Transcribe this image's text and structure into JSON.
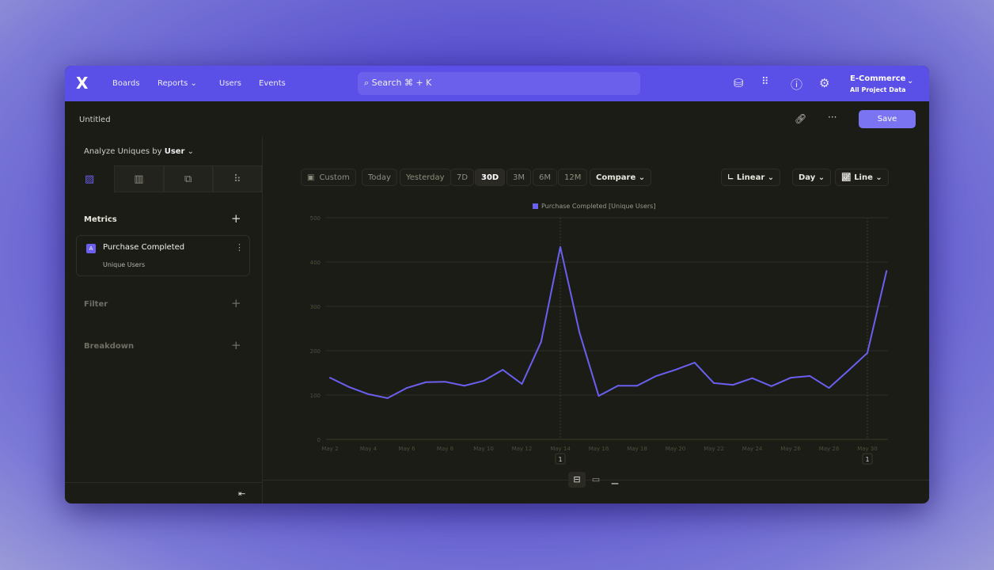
{
  "nav": {
    "logo": "X",
    "items": [
      "Boards",
      "Reports",
      "Users",
      "Events"
    ],
    "search_placeholder": "Search ⌘ + K",
    "project": "E-Commerce",
    "project_sub": "All Project Data"
  },
  "report": {
    "title": "Untitled",
    "save": "Save"
  },
  "sidebar": {
    "analyze_label": "Analyze Uniques by",
    "analyze_value": "User",
    "metrics_label": "Metrics",
    "metric": {
      "badge": "A",
      "name": "Purchase Completed",
      "measure": "Unique Users"
    },
    "filter_label": "Filter",
    "breakdown_label": "Breakdown"
  },
  "toolbar": {
    "ranges": [
      "Custom",
      "Today",
      "Yesterday",
      "7D",
      "30D",
      "3M",
      "6M",
      "12M"
    ],
    "selected_range": "30D",
    "compare": "Compare",
    "scale": "Linear",
    "interval": "Day",
    "chart_type": "Line"
  },
  "colors": {
    "header": "#5a4fe6",
    "series": "#6b5ff0",
    "accent": "#7b74f2"
  },
  "chart_data": {
    "type": "line",
    "legend": "Purchase Completed [Unique Users]",
    "legend_position": "top",
    "x": [
      "May 2",
      "May 3",
      "May 4",
      "May 5",
      "May 6",
      "May 7",
      "May 8",
      "May 9",
      "May 10",
      "May 11",
      "May 12",
      "May 13",
      "May 14",
      "May 15",
      "May 16",
      "May 17",
      "May 18",
      "May 19",
      "May 20",
      "May 21",
      "May 22",
      "May 23",
      "May 24",
      "May 25",
      "May 26",
      "May 27",
      "May 28",
      "May 29",
      "May 30",
      "May 31"
    ],
    "x_tick_labels": [
      "May 2",
      "May 4",
      "May 6",
      "May 8",
      "May 10",
      "May 12",
      "May 14",
      "May 16",
      "May 18",
      "May 20",
      "May 22",
      "May 24",
      "May 26",
      "May 28",
      "May 30"
    ],
    "series": [
      {
        "name": "Purchase Completed [Unique Users]",
        "values": [
          139,
          118,
          102,
          93,
          116,
          129,
          130,
          121,
          132,
          157,
          125,
          220,
          434,
          241,
          98,
          121,
          121,
          143,
          157,
          173,
          127,
          123,
          138,
          120,
          139,
          143,
          116,
          155,
          195,
          380
        ]
      }
    ],
    "y_ticks": [
      0,
      100,
      200,
      300,
      400,
      500
    ],
    "ylim": [
      0,
      500
    ],
    "grid": true,
    "annotations": [
      {
        "x": "May 14",
        "label": "1"
      },
      {
        "x": "May 30",
        "label": "1"
      }
    ]
  }
}
